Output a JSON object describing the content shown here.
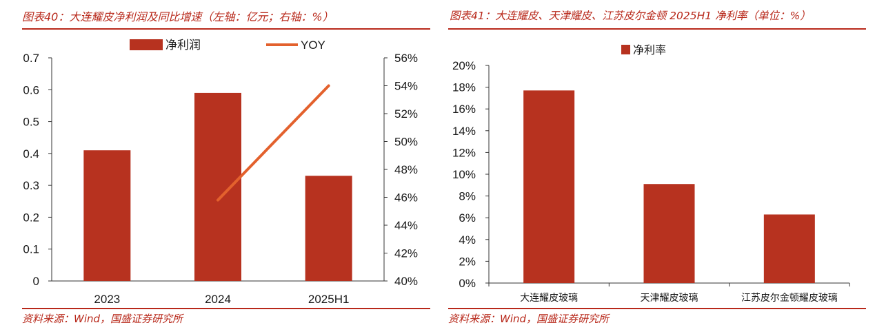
{
  "left_panel": {
    "title": "图表40：大连耀皮净利润及同比增速（左轴：亿元；右轴：%）",
    "source": "资料来源：Wind，国盛证券研究所"
  },
  "right_panel": {
    "title": "图表41：大连耀皮、天津耀皮、江苏皮尔金顿 2025H1 净利率（单位：%）",
    "source": "资料来源：Wind，国盛证券研究所"
  },
  "colors": {
    "accent": "#b8281a",
    "bar": "#b7321f",
    "line": "#e3612d",
    "axis": "#333333",
    "text": "#1a1a1a"
  },
  "chart_data": [
    {
      "type": "bar",
      "categories": [
        "2023",
        "2024",
        "2025H1"
      ],
      "series": [
        {
          "name": "净利润",
          "type": "bar",
          "axis": "left",
          "values": [
            0.41,
            0.59,
            0.33
          ]
        },
        {
          "name": "YOY",
          "type": "line",
          "axis": "right",
          "values": [
            null,
            45.8,
            54.0
          ]
        }
      ],
      "y_left": {
        "ylim": [
          0,
          0.7
        ],
        "ticks": [
          "0",
          "0.1",
          "0.2",
          "0.3",
          "0.4",
          "0.5",
          "0.6",
          "0.7"
        ]
      },
      "y_right": {
        "ylim": [
          40,
          56
        ],
        "ticks": [
          "40%",
          "42%",
          "44%",
          "46%",
          "48%",
          "50%",
          "52%",
          "54%",
          "56%"
        ]
      },
      "legend_position": "top-center",
      "grid": false
    },
    {
      "type": "bar",
      "categories": [
        "大连耀皮玻璃",
        "天津耀皮玻璃",
        "江苏皮尔金顿耀皮玻璃"
      ],
      "series": [
        {
          "name": "净利率",
          "values": [
            17.7,
            9.1,
            6.3
          ]
        }
      ],
      "ylim": [
        0,
        20
      ],
      "y_ticks": [
        "0%",
        "2%",
        "4%",
        "6%",
        "8%",
        "10%",
        "12%",
        "14%",
        "16%",
        "18%",
        "20%"
      ],
      "legend_position": "top-center",
      "grid": false
    }
  ]
}
